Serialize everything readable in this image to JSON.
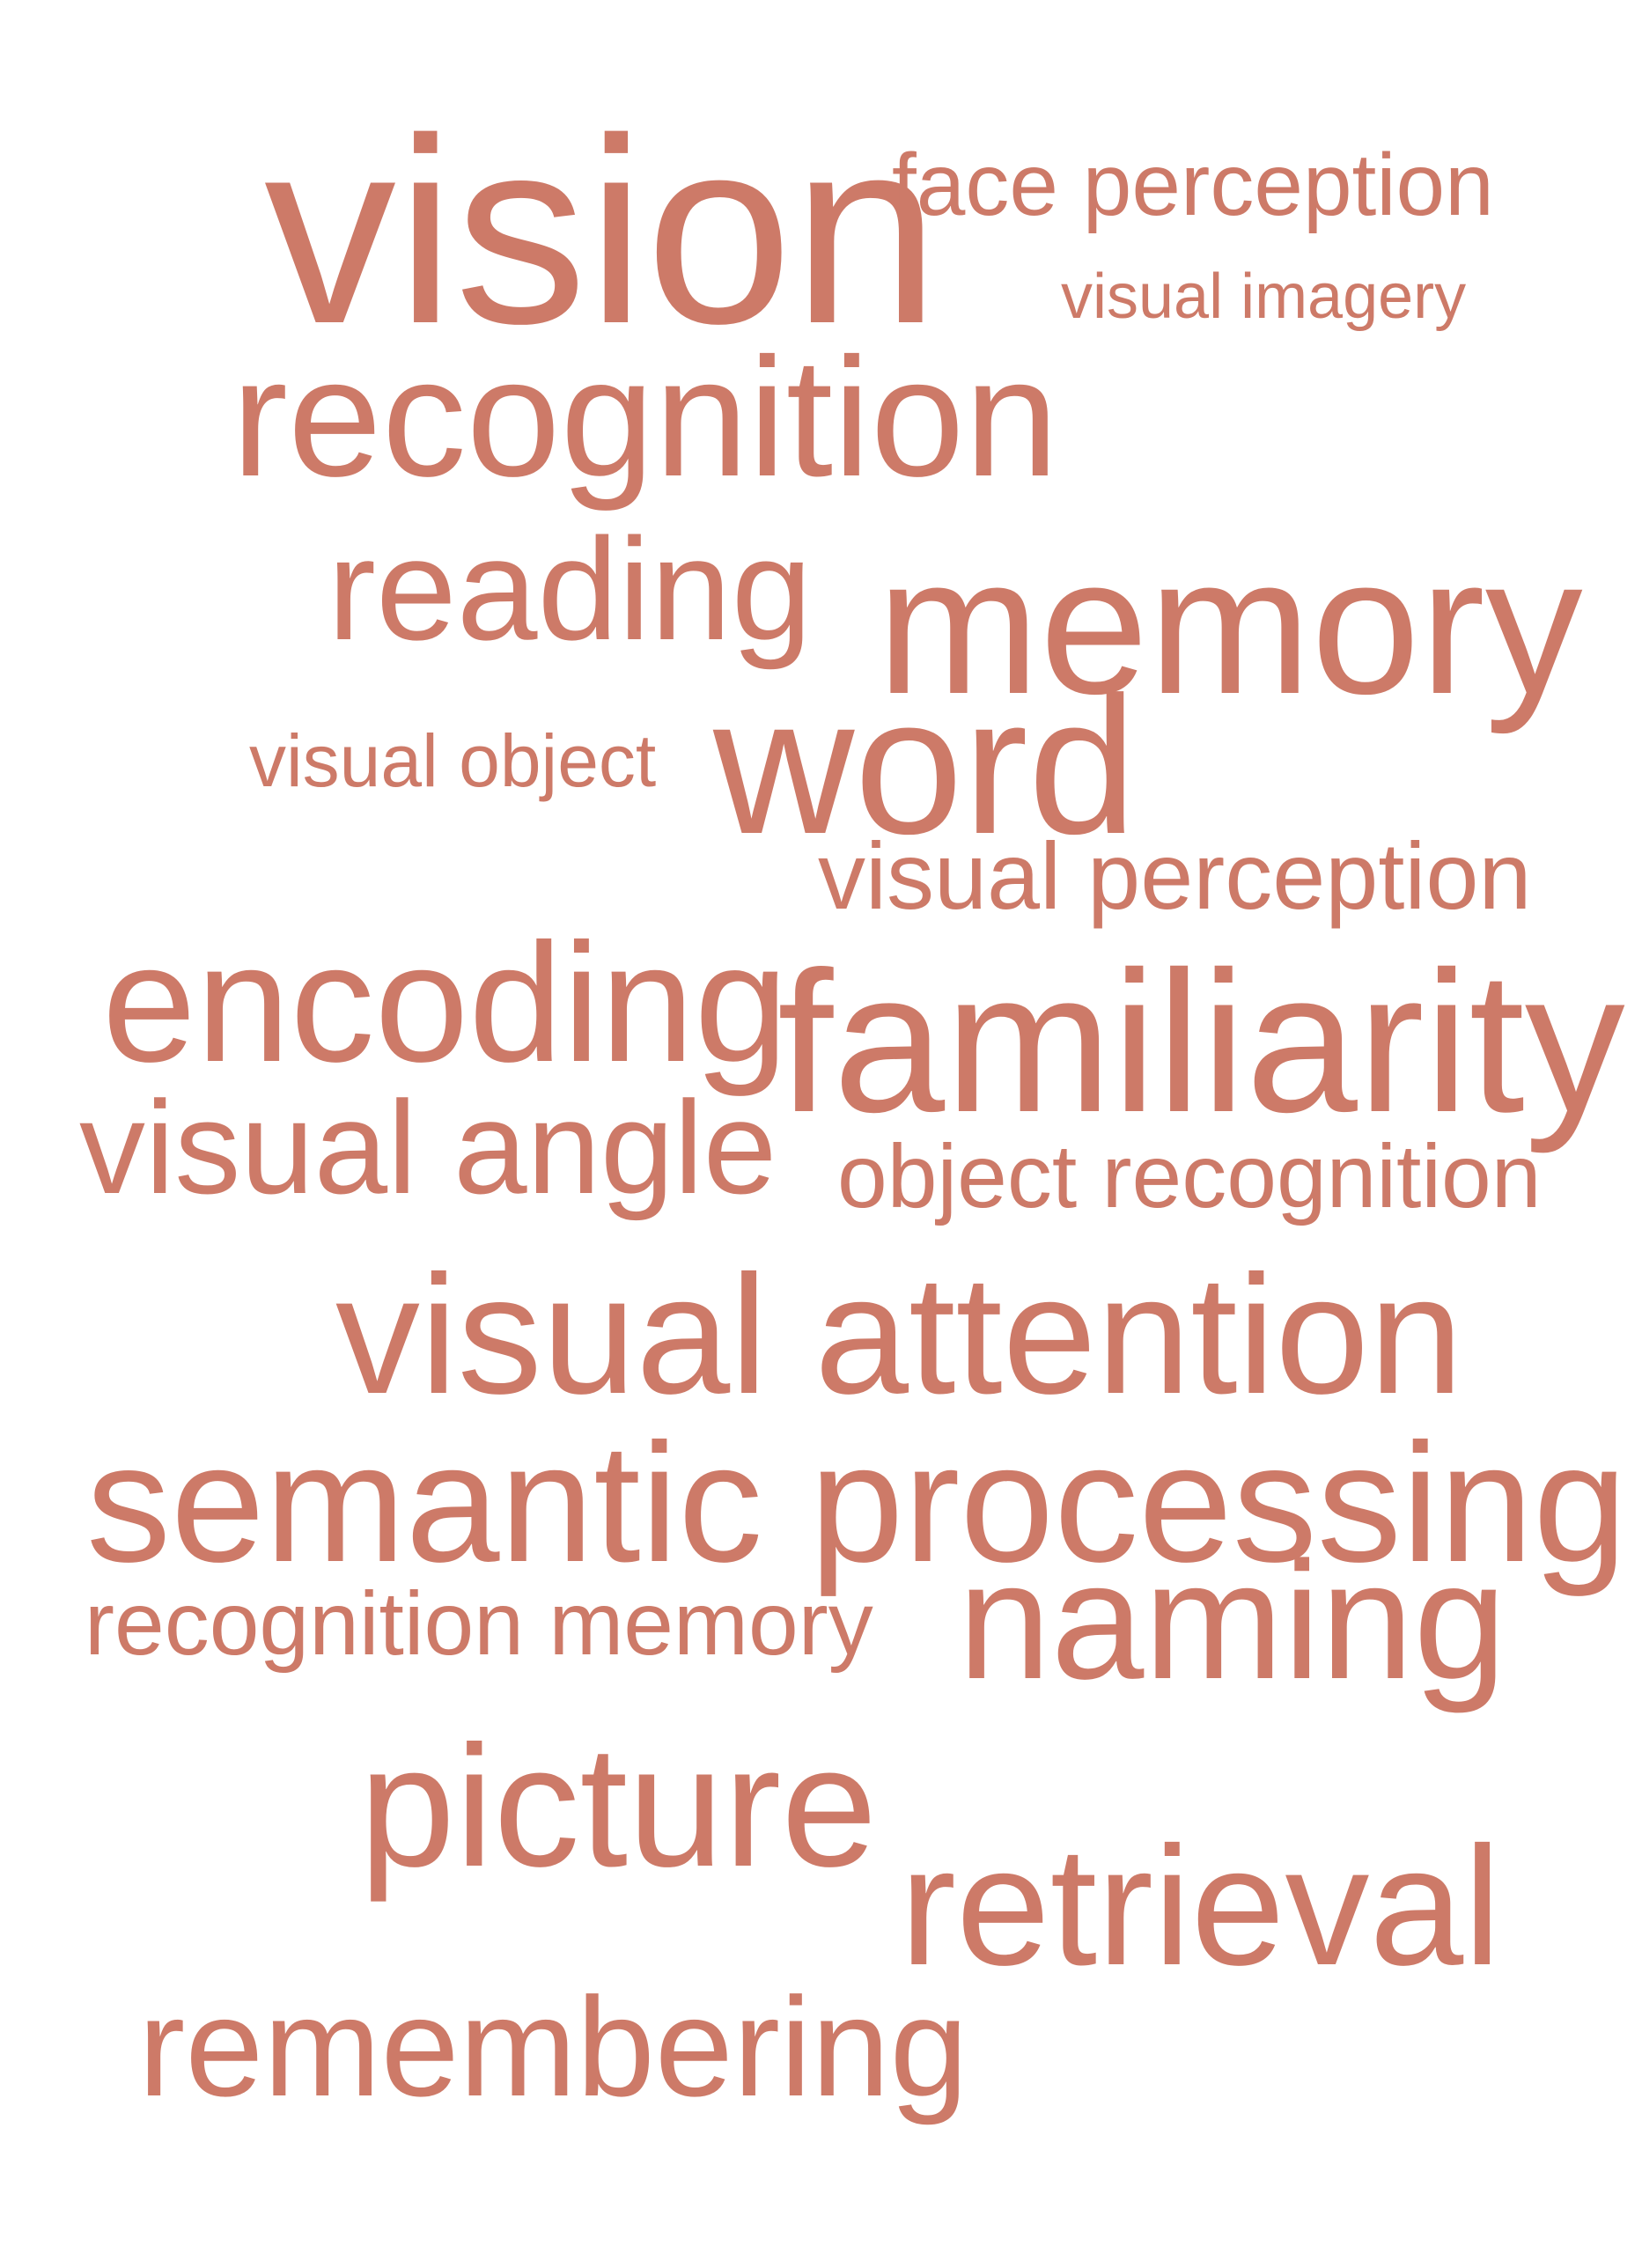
{
  "palette": {
    "word_color": "#cd7a68",
    "background": "#ffffff"
  },
  "words": {
    "vision": "vision",
    "face_perception": "face perception",
    "visual_imagery": "visual imagery",
    "recognition": "recognition",
    "reading": "reading",
    "memory": "memory",
    "visual_object": "visual object",
    "word": "word",
    "visual_perception": "visual perception",
    "encoding": "encoding",
    "familiarity": "familiarity",
    "visual_angle": "visual angle",
    "object_recognition": "object recognition",
    "visual_attention": "visual attention",
    "semantic_processing": "semantic processing",
    "recognition_memory": "recognition memory",
    "naming": "naming",
    "picture": "picture",
    "retrieval": "retrieval",
    "remembering": "remembering"
  }
}
